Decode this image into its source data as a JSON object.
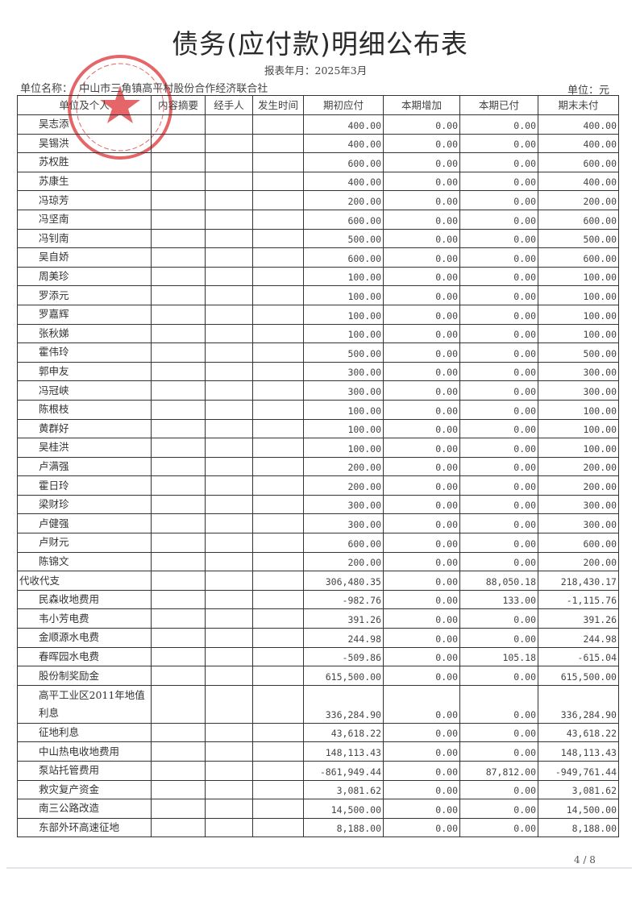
{
  "title": "债务(应付款)明细公布表",
  "period": "报表年月：2025年3月",
  "unit_name_label": "单位名称：",
  "unit_name": "中山市三角镇高平村股份合作经济联合社",
  "unit": "单位：元",
  "stamp": {
    "text": "中山市三角镇高平村股份合作经济联合社",
    "color": "#d9262b"
  },
  "table": {
    "headers": [
      "单位及个人",
      "内容摘要",
      "经手人",
      "发生时间",
      "期初应付",
      "本期增加",
      "本期已付",
      "期末未付"
    ],
    "rows": [
      {
        "label": "吴志添",
        "level": 1,
        "values": [
          "400.00",
          "0.00",
          "0.00",
          "400.00"
        ]
      },
      {
        "label": "吴锡洪",
        "level": 1,
        "values": [
          "400.00",
          "0.00",
          "0.00",
          "400.00"
        ]
      },
      {
        "label": "苏权胜",
        "level": 1,
        "values": [
          "600.00",
          "0.00",
          "0.00",
          "600.00"
        ]
      },
      {
        "label": "苏康生",
        "level": 1,
        "values": [
          "400.00",
          "0.00",
          "0.00",
          "400.00"
        ]
      },
      {
        "label": "冯琼芳",
        "level": 1,
        "values": [
          "200.00",
          "0.00",
          "0.00",
          "200.00"
        ]
      },
      {
        "label": "冯坚南",
        "level": 1,
        "values": [
          "600.00",
          "0.00",
          "0.00",
          "600.00"
        ]
      },
      {
        "label": "冯钊南",
        "level": 1,
        "values": [
          "500.00",
          "0.00",
          "0.00",
          "500.00"
        ]
      },
      {
        "label": "吴自娇",
        "level": 1,
        "values": [
          "600.00",
          "0.00",
          "0.00",
          "600.00"
        ]
      },
      {
        "label": "周美珍",
        "level": 1,
        "values": [
          "100.00",
          "0.00",
          "0.00",
          "100.00"
        ]
      },
      {
        "label": "罗添元",
        "level": 1,
        "values": [
          "100.00",
          "0.00",
          "0.00",
          "100.00"
        ]
      },
      {
        "label": "罗嘉辉",
        "level": 1,
        "values": [
          "100.00",
          "0.00",
          "0.00",
          "100.00"
        ]
      },
      {
        "label": "张秋娣",
        "level": 1,
        "values": [
          "100.00",
          "0.00",
          "0.00",
          "100.00"
        ]
      },
      {
        "label": "霍伟玲",
        "level": 1,
        "values": [
          "500.00",
          "0.00",
          "0.00",
          "500.00"
        ]
      },
      {
        "label": "郭申友",
        "level": 1,
        "values": [
          "300.00",
          "0.00",
          "0.00",
          "300.00"
        ]
      },
      {
        "label": "冯冠峡",
        "level": 1,
        "values": [
          "300.00",
          "0.00",
          "0.00",
          "300.00"
        ]
      },
      {
        "label": "陈根枝",
        "level": 1,
        "values": [
          "100.00",
          "0.00",
          "0.00",
          "100.00"
        ]
      },
      {
        "label": "黄群好",
        "level": 1,
        "values": [
          "100.00",
          "0.00",
          "0.00",
          "100.00"
        ]
      },
      {
        "label": "吴桂洪",
        "level": 1,
        "values": [
          "100.00",
          "0.00",
          "0.00",
          "100.00"
        ]
      },
      {
        "label": "卢满强",
        "level": 1,
        "values": [
          "200.00",
          "0.00",
          "0.00",
          "200.00"
        ]
      },
      {
        "label": "霍日玲",
        "level": 1,
        "values": [
          "200.00",
          "0.00",
          "0.00",
          "200.00"
        ]
      },
      {
        "label": "梁财珍",
        "level": 1,
        "values": [
          "300.00",
          "0.00",
          "0.00",
          "300.00"
        ]
      },
      {
        "label": "卢健强",
        "level": 1,
        "values": [
          "300.00",
          "0.00",
          "0.00",
          "300.00"
        ]
      },
      {
        "label": "卢财元",
        "level": 1,
        "values": [
          "600.00",
          "0.00",
          "0.00",
          "600.00"
        ]
      },
      {
        "label": "陈锦文",
        "level": 1,
        "values": [
          "200.00",
          "0.00",
          "0.00",
          "200.00"
        ]
      },
      {
        "label": "代收代支",
        "level": 0,
        "values": [
          "306,480.35",
          "0.00",
          "88,050.18",
          "218,430.17"
        ]
      },
      {
        "label": "民森收地费用",
        "level": 1,
        "values": [
          "-982.76",
          "0.00",
          "133.00",
          "-1,115.76"
        ]
      },
      {
        "label": "韦小芳电费",
        "level": 1,
        "values": [
          "391.26",
          "0.00",
          "0.00",
          "391.26"
        ]
      },
      {
        "label": "金顺源水电费",
        "level": 1,
        "values": [
          "244.98",
          "0.00",
          "0.00",
          "244.98"
        ]
      },
      {
        "label": "春晖园水电费",
        "level": 1,
        "values": [
          "-509.86",
          "0.00",
          "105.18",
          "-615.04"
        ]
      },
      {
        "label": "股份制奖励金",
        "level": 1,
        "values": [
          "615,500.00",
          "0.00",
          "0.00",
          "615,500.00"
        ]
      },
      {
        "label": "高平工业区2011年地值利息",
        "level": 1,
        "tall": true,
        "values": [
          "336,284.90",
          "0.00",
          "0.00",
          "336,284.90"
        ]
      },
      {
        "label": "征地利息",
        "level": 1,
        "values": [
          "43,618.22",
          "0.00",
          "0.00",
          "43,618.22"
        ]
      },
      {
        "label": "中山热电收地费用",
        "level": 1,
        "values": [
          "148,113.43",
          "0.00",
          "0.00",
          "148,113.43"
        ]
      },
      {
        "label": "泵站托管费用",
        "level": 1,
        "values": [
          "-861,949.44",
          "0.00",
          "87,812.00",
          "-949,761.44"
        ]
      },
      {
        "label": "救灾复产资金",
        "level": 1,
        "values": [
          "3,081.62",
          "0.00",
          "0.00",
          "3,081.62"
        ]
      },
      {
        "label": "南三公路改造",
        "level": 1,
        "values": [
          "14,500.00",
          "0.00",
          "0.00",
          "14,500.00"
        ]
      },
      {
        "label": "东部外环高速征地",
        "level": 1,
        "values": [
          "8,188.00",
          "0.00",
          "0.00",
          "8,188.00"
        ]
      }
    ]
  },
  "page_number": "4 / 8"
}
